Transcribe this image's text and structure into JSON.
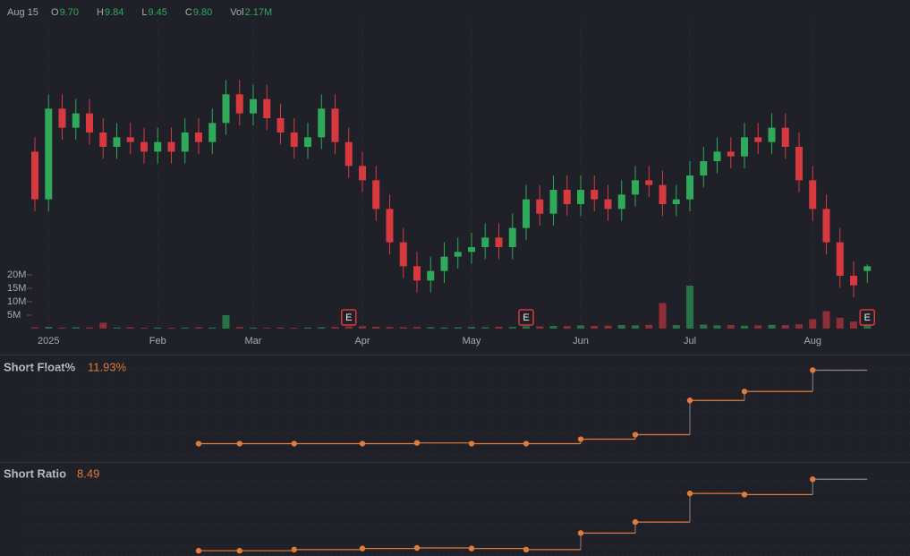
{
  "header": {
    "date": "Aug 15",
    "items": [
      {
        "label": "O",
        "value": "9.70"
      },
      {
        "label": "H",
        "value": "9.84"
      },
      {
        "label": "L",
        "value": "9.45"
      },
      {
        "label": "C",
        "value": "9.80"
      },
      {
        "label": "Vol",
        "value": "2.17M"
      }
    ]
  },
  "chart_data": [
    {
      "type": "candlestick",
      "categories": [
        null,
        "2025",
        null,
        null,
        null,
        null,
        null,
        null,
        null,
        "Feb",
        null,
        null,
        null,
        null,
        null,
        null,
        "Mar",
        null,
        null,
        null,
        null,
        null,
        null,
        null,
        "Apr",
        null,
        null,
        null,
        null,
        null,
        null,
        null,
        "May",
        null,
        null,
        null,
        null,
        null,
        null,
        null,
        "Jun",
        null,
        null,
        null,
        null,
        null,
        null,
        null,
        "Jul",
        null,
        null,
        null,
        null,
        null,
        null,
        null,
        null,
        "Aug",
        null,
        null,
        null,
        null
      ],
      "open": [
        12.2,
        11.2,
        13.1,
        12.7,
        13.0,
        12.6,
        12.3,
        12.5,
        12.4,
        12.2,
        12.4,
        12.2,
        12.6,
        12.4,
        12.8,
        13.4,
        13.0,
        13.3,
        12.9,
        12.6,
        12.3,
        12.5,
        13.1,
        12.4,
        11.9,
        11.6,
        11.0,
        10.3,
        9.8,
        9.5,
        9.7,
        10.0,
        10.1,
        10.2,
        10.4,
        10.2,
        10.6,
        11.2,
        10.9,
        11.4,
        11.1,
        11.4,
        11.2,
        11.0,
        11.3,
        11.6,
        11.5,
        11.1,
        11.2,
        11.7,
        12.0,
        12.2,
        12.1,
        12.5,
        12.4,
        12.7,
        12.3,
        11.6,
        11.0,
        10.3,
        9.6,
        9.7
      ],
      "high": [
        12.5,
        13.4,
        13.4,
        13.3,
        13.3,
        12.9,
        12.8,
        12.8,
        12.7,
        12.7,
        12.7,
        12.9,
        12.9,
        13.1,
        13.7,
        13.7,
        13.6,
        13.6,
        13.2,
        12.9,
        12.8,
        13.4,
        13.4,
        12.7,
        12.2,
        11.9,
        11.3,
        10.6,
        10.1,
        10.0,
        10.3,
        10.4,
        10.5,
        10.7,
        10.7,
        10.9,
        11.5,
        11.5,
        11.7,
        11.7,
        11.7,
        11.7,
        11.5,
        11.6,
        11.9,
        11.9,
        11.8,
        11.5,
        12.0,
        12.3,
        12.5,
        12.5,
        12.8,
        12.8,
        13.0,
        13.0,
        12.6,
        11.9,
        11.3,
        10.6,
        9.9,
        9.84
      ],
      "low": [
        10.95,
        10.95,
        12.45,
        12.45,
        12.35,
        12.05,
        12.05,
        12.15,
        11.95,
        11.95,
        11.95,
        11.95,
        12.15,
        12.15,
        12.55,
        12.75,
        12.75,
        12.65,
        12.35,
        12.05,
        12.05,
        12.25,
        12.15,
        11.65,
        11.35,
        10.75,
        10.05,
        9.55,
        9.25,
        9.25,
        9.45,
        9.75,
        9.85,
        9.95,
        9.95,
        9.95,
        10.35,
        10.65,
        10.65,
        10.85,
        10.85,
        10.95,
        10.75,
        10.75,
        11.05,
        11.25,
        10.85,
        10.85,
        10.95,
        11.45,
        11.75,
        11.85,
        11.85,
        12.15,
        12.15,
        12.05,
        11.35,
        10.75,
        10.05,
        9.35,
        9.15,
        9.45
      ],
      "close": [
        11.2,
        13.1,
        12.7,
        13.0,
        12.6,
        12.3,
        12.5,
        12.4,
        12.2,
        12.4,
        12.2,
        12.6,
        12.4,
        12.8,
        13.4,
        13.0,
        13.3,
        12.9,
        12.6,
        12.3,
        12.5,
        13.1,
        12.4,
        11.9,
        11.6,
        11.0,
        10.3,
        9.8,
        9.5,
        9.7,
        10.0,
        10.1,
        10.2,
        10.4,
        10.2,
        10.6,
        11.2,
        10.9,
        11.4,
        11.1,
        11.4,
        11.2,
        11.0,
        11.3,
        11.6,
        11.5,
        11.1,
        11.2,
        11.7,
        12.0,
        12.2,
        12.1,
        12.5,
        12.4,
        12.7,
        12.3,
        11.6,
        11.0,
        10.3,
        9.6,
        9.4,
        9.8
      ],
      "volume": [
        0.5,
        0.6,
        0.4,
        0.5,
        0.4,
        2.2,
        0.4,
        0.5,
        0.3,
        0.4,
        0.3,
        0.4,
        0.5,
        0.4,
        5.0,
        0.6,
        0.4,
        0.3,
        0.4,
        0.3,
        0.4,
        0.5,
        0.6,
        0.8,
        0.9,
        0.7,
        0.6,
        0.5,
        0.6,
        0.5,
        0.4,
        0.5,
        0.6,
        0.5,
        0.7,
        0.6,
        0.9,
        0.8,
        1.0,
        0.9,
        1.2,
        1.0,
        1.1,
        1.3,
        1.2,
        1.4,
        9.5,
        1.3,
        16.0,
        1.5,
        1.2,
        1.3,
        1.1,
        1.2,
        1.4,
        1.3,
        1.6,
        3.5,
        6.5,
        4.0,
        2.6,
        2.17
      ],
      "up_color": "#2faa5a",
      "down_color": "#d8393f",
      "ylim": [
        9,
        15
      ],
      "vol_ylim": [
        0,
        20
      ],
      "vol_ticks": [
        {
          "value": 5,
          "label": "5M"
        },
        {
          "value": 10,
          "label": "10M"
        },
        {
          "value": 15,
          "label": "15M"
        },
        {
          "value": 20,
          "label": "20M"
        }
      ],
      "events": [
        {
          "label": "E",
          "candle": 23
        },
        {
          "label": "E",
          "candle": 36
        },
        {
          "label": "E",
          "candle": 61
        }
      ]
    },
    {
      "type": "step",
      "title": "Short Float%",
      "current_label": "11.93%",
      "color": "#e07b39",
      "values": [
        null,
        null,
        null,
        null,
        null,
        null,
        null,
        null,
        null,
        null,
        null,
        null,
        7.0,
        null,
        null,
        7.0,
        null,
        null,
        null,
        7.0,
        null,
        null,
        null,
        null,
        7.0,
        null,
        null,
        null,
        7.05,
        null,
        null,
        null,
        7.0,
        null,
        null,
        null,
        7.0,
        null,
        null,
        null,
        7.3,
        null,
        null,
        null,
        7.6,
        null,
        null,
        null,
        9.9,
        null,
        null,
        null,
        10.5,
        null,
        null,
        null,
        null,
        11.93,
        null,
        null,
        null,
        null
      ],
      "ylim": [
        6.4,
        12.5
      ]
    },
    {
      "type": "step",
      "title": "Short Ratio",
      "current_label": "8.49",
      "color": "#e07b39",
      "values": [
        null,
        null,
        null,
        null,
        null,
        null,
        null,
        null,
        null,
        null,
        null,
        null,
        2.0,
        null,
        null,
        2.0,
        null,
        null,
        null,
        2.1,
        null,
        null,
        null,
        null,
        2.2,
        null,
        null,
        null,
        2.25,
        null,
        null,
        null,
        2.2,
        null,
        null,
        null,
        2.1,
        null,
        null,
        null,
        3.6,
        null,
        null,
        null,
        4.6,
        null,
        null,
        null,
        7.2,
        null,
        null,
        null,
        7.1,
        null,
        null,
        null,
        null,
        8.49,
        null,
        null,
        null,
        null
      ],
      "ylim": [
        1.6,
        9.0
      ]
    }
  ]
}
